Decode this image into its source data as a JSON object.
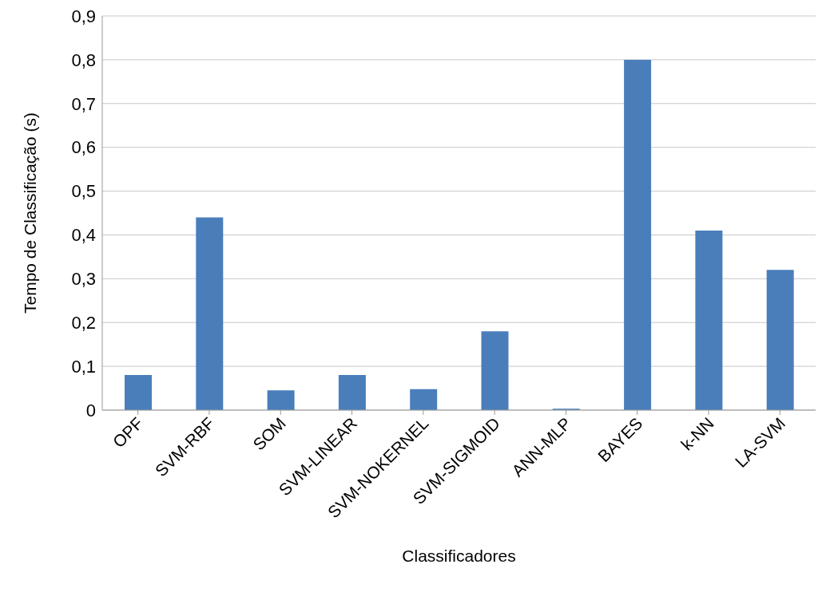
{
  "chart_data": {
    "type": "bar",
    "xlabel": "Classificadores",
    "ylabel": "Tempo de Classificação (s)",
    "categories": [
      "OPF",
      "SVM-RBF",
      "SOM",
      "SVM-LINEAR",
      "SVM-NOKERNEL",
      "SVM-SIGMOID",
      "ANN-MLP",
      "BAYES",
      "k-NN",
      "LA-SVM"
    ],
    "values": [
      0.08,
      0.44,
      0.045,
      0.08,
      0.048,
      0.18,
      0.003,
      0.8,
      0.41,
      0.32
    ],
    "color": "#4a7ebb",
    "ylim": [
      0,
      0.9
    ],
    "yticks": [
      0,
      {
        "value": 0.1,
        "label": "0,1"
      },
      {
        "value": 0.2,
        "label": "0,2"
      },
      {
        "value": 0.3,
        "label": "0,3"
      },
      {
        "value": 0.4,
        "label": "0,4"
      },
      {
        "value": 0.5,
        "label": "0,5"
      },
      {
        "value": 0.6,
        "label": "0,6"
      },
      {
        "value": 0.7,
        "label": "0,7"
      },
      {
        "value": 0.8,
        "label": "0,8"
      },
      {
        "value": 0.9,
        "label": "0,9"
      }
    ],
    "grid": "y",
    "legend": false
  }
}
